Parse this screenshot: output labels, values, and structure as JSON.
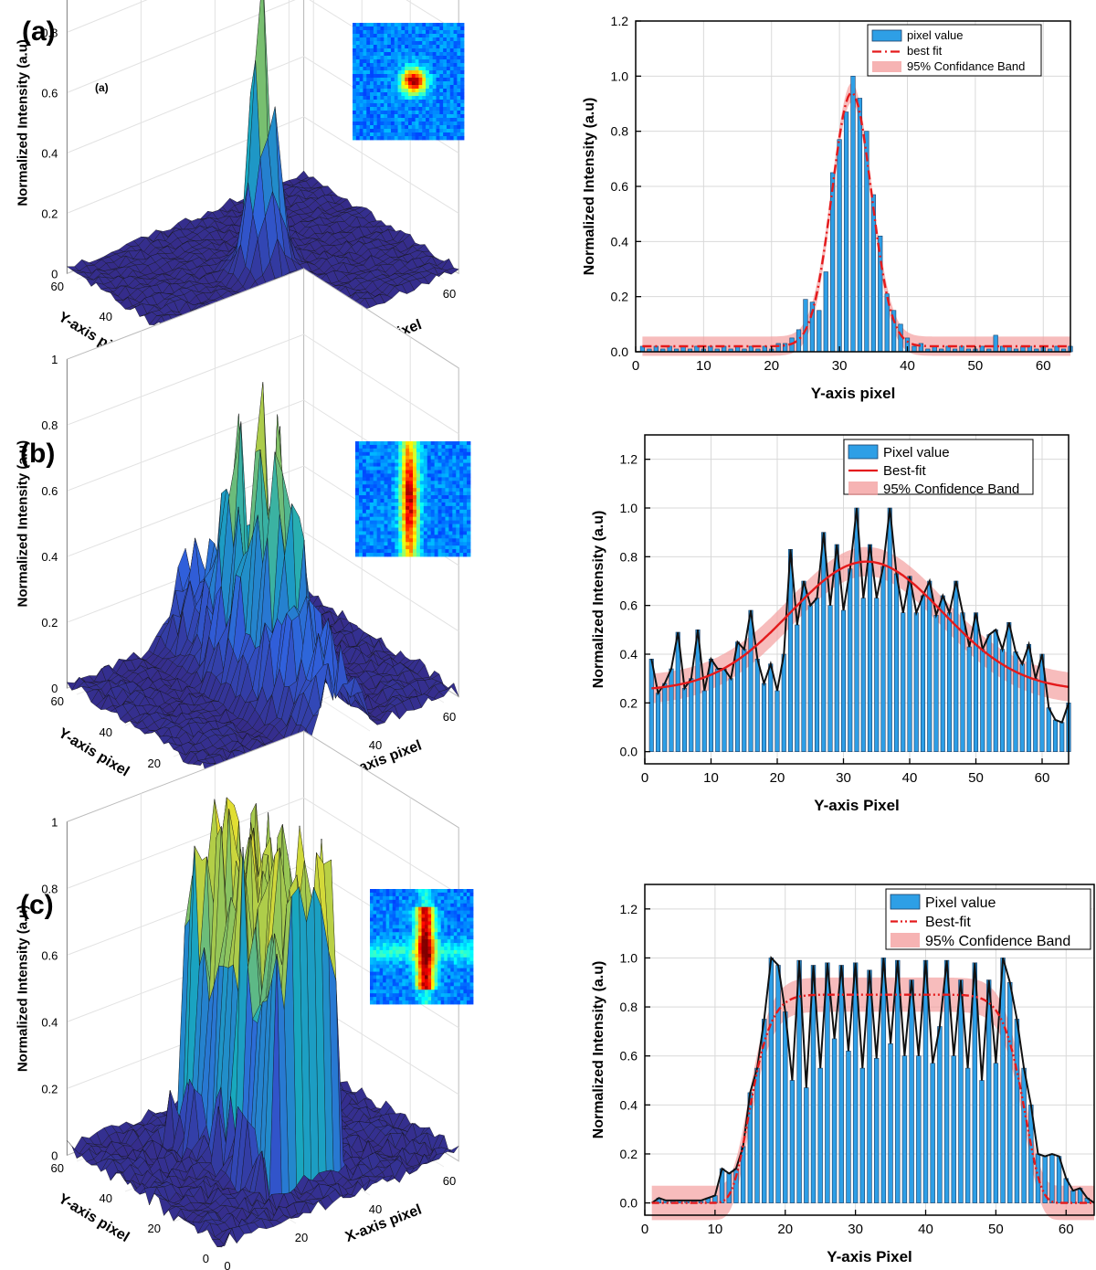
{
  "panel_labels": [
    "(a)",
    "(b)",
    "(c)"
  ],
  "surface_small_label": "(a)",
  "surface_axes": {
    "zlabel": "Normalized Intensity (a.u)",
    "ylabel": "Y-axis pixel",
    "xlabel": "X-axis pixel",
    "z_ticks": [
      "0",
      "0.2",
      "0.4",
      "0.6",
      "0.8",
      "1"
    ],
    "y_ticks": [
      "0",
      "20",
      "40",
      "60"
    ],
    "x_ticks": [
      "0",
      "20",
      "40",
      "60"
    ]
  },
  "colors": {
    "bar_fill": "#2e9fe6",
    "fit_red": "#e41a1c",
    "band": "#f4a0a0",
    "surface_low": "#2b2f9c",
    "surface_high": "#f0e040",
    "beam_bg": "#1034f0"
  },
  "chart_data": [
    {
      "type": "bar",
      "panel": "(a)",
      "title": "",
      "xlabel": "Y-axis pixel",
      "ylabel": "Normalized Intensity (a.u)",
      "xlim": [
        0,
        64
      ],
      "ylim": [
        0,
        1.2
      ],
      "xticks": [
        "0",
        "10",
        "20",
        "30",
        "40",
        "50",
        "60"
      ],
      "yticks": [
        "0.0",
        "0.2",
        "0.4",
        "0.6",
        "0.8",
        "1.0",
        "1.2"
      ],
      "legend": [
        "pixel value",
        "best fit",
        "95% Confidance Band"
      ],
      "fit": {
        "model": "gaussian",
        "amplitude": 0.92,
        "center": 31.8,
        "sigma": 2.9,
        "offset": 0.02,
        "band_halfwidth": 0.035,
        "style": "dash-dot"
      },
      "x": [
        1,
        2,
        3,
        4,
        5,
        6,
        7,
        8,
        9,
        10,
        11,
        12,
        13,
        14,
        15,
        16,
        17,
        18,
        19,
        20,
        21,
        22,
        23,
        24,
        25,
        26,
        27,
        28,
        29,
        30,
        31,
        32,
        33,
        34,
        35,
        36,
        37,
        38,
        39,
        40,
        41,
        42,
        43,
        44,
        45,
        46,
        47,
        48,
        49,
        50,
        51,
        52,
        53,
        54,
        55,
        56,
        57,
        58,
        59,
        60,
        61,
        62,
        63,
        64
      ],
      "values": [
        0.02,
        0.01,
        0.02,
        0.01,
        0.02,
        0.01,
        0.02,
        0.01,
        0.02,
        0.01,
        0.02,
        0.01,
        0.02,
        0.01,
        0.02,
        0.01,
        0.02,
        0.01,
        0.02,
        0.01,
        0.03,
        0.03,
        0.05,
        0.08,
        0.19,
        0.18,
        0.15,
        0.29,
        0.65,
        0.77,
        0.87,
        1.0,
        0.92,
        0.8,
        0.57,
        0.42,
        0.21,
        0.15,
        0.1,
        0.05,
        0.02,
        0.03,
        0.01,
        0.02,
        0.01,
        0.02,
        0.01,
        0.02,
        0.01,
        0.01,
        0.02,
        0.01,
        0.06,
        0.02,
        0.02,
        0.01,
        0.02,
        0.02,
        0.01,
        0.02,
        0.01,
        0.02,
        0.01,
        0.02
      ]
    },
    {
      "type": "bar",
      "panel": "(b)",
      "title": "",
      "xlabel": "Y-axis Pixel",
      "ylabel": "Normalized Intensity (a.u)",
      "xlim": [
        0,
        64
      ],
      "ylim": [
        -0.05,
        1.3
      ],
      "xticks": [
        "0",
        "10",
        "20",
        "30",
        "40",
        "50",
        "60"
      ],
      "yticks": [
        "0.0",
        "0.2",
        "0.4",
        "0.6",
        "0.8",
        "1.0",
        "1.2"
      ],
      "legend": [
        "Pixel value",
        "Best-fit",
        "95% Confidence Band"
      ],
      "fit": {
        "model": "gaussian",
        "amplitude": 0.53,
        "center": 33.5,
        "sigma": 11.5,
        "offset": 0.25,
        "band_halfwidth": 0.06,
        "style": "solid"
      },
      "x": [
        1,
        2,
        3,
        4,
        5,
        6,
        7,
        8,
        9,
        10,
        11,
        12,
        13,
        14,
        15,
        16,
        17,
        18,
        19,
        20,
        21,
        22,
        23,
        24,
        25,
        26,
        27,
        28,
        29,
        30,
        31,
        32,
        33,
        34,
        35,
        36,
        37,
        38,
        39,
        40,
        41,
        42,
        43,
        44,
        45,
        46,
        47,
        48,
        49,
        50,
        51,
        52,
        53,
        54,
        55,
        56,
        57,
        58,
        59,
        60,
        61,
        62,
        63,
        64
      ],
      "values": [
        0.38,
        0.24,
        0.28,
        0.34,
        0.49,
        0.26,
        0.3,
        0.5,
        0.25,
        0.38,
        0.34,
        0.34,
        0.3,
        0.45,
        0.42,
        0.58,
        0.38,
        0.28,
        0.36,
        0.25,
        0.4,
        0.83,
        0.52,
        0.7,
        0.6,
        0.63,
        0.9,
        0.6,
        0.85,
        0.58,
        0.75,
        1.0,
        0.63,
        0.85,
        0.63,
        0.76,
        1.0,
        0.73,
        0.57,
        0.72,
        0.57,
        0.64,
        0.7,
        0.56,
        0.64,
        0.57,
        0.7,
        0.57,
        0.43,
        0.57,
        0.42,
        0.48,
        0.5,
        0.42,
        0.53,
        0.41,
        0.36,
        0.44,
        0.3,
        0.4,
        0.18,
        0.13,
        0.12,
        0.2
      ]
    },
    {
      "type": "bar",
      "panel": "(c)",
      "title": "",
      "xlabel": "Y-axis Pixel",
      "ylabel": "Normalized Intensity (a.u)",
      "xlim": [
        0,
        64
      ],
      "ylim": [
        -0.05,
        1.3
      ],
      "xticks": [
        "0",
        "10",
        "20",
        "30",
        "40",
        "50",
        "60"
      ],
      "yticks": [
        "0.0",
        "0.2",
        "0.4",
        "0.6",
        "0.8",
        "1.0",
        "1.2"
      ],
      "legend": [
        "Pixel value",
        "Best-fit",
        "95% Confidence Band"
      ],
      "fit": {
        "model": "flat-top",
        "level": 0.85,
        "edge_left": 14.5,
        "edge_right": 54.5,
        "power": 10,
        "band_halfwidth": 0.07,
        "style": "dash-dot-dot"
      },
      "x": [
        1,
        2,
        3,
        4,
        5,
        6,
        7,
        8,
        9,
        10,
        11,
        12,
        13,
        14,
        15,
        16,
        17,
        18,
        19,
        20,
        21,
        22,
        23,
        24,
        25,
        26,
        27,
        28,
        29,
        30,
        31,
        32,
        33,
        34,
        35,
        36,
        37,
        38,
        39,
        40,
        41,
        42,
        43,
        44,
        45,
        46,
        47,
        48,
        49,
        50,
        51,
        52,
        53,
        54,
        55,
        56,
        57,
        58,
        59,
        60,
        61,
        62,
        63,
        64
      ],
      "values": [
        0.0,
        0.02,
        0.01,
        0.01,
        0.01,
        0.01,
        0.01,
        0.01,
        0.02,
        0.03,
        0.14,
        0.12,
        0.14,
        0.23,
        0.45,
        0.55,
        0.75,
        1.0,
        0.97,
        0.78,
        0.5,
        0.99,
        0.47,
        0.97,
        0.55,
        0.98,
        0.67,
        0.97,
        0.62,
        0.98,
        0.55,
        0.95,
        0.59,
        1.0,
        0.65,
        0.99,
        0.6,
        0.91,
        0.6,
        0.99,
        0.57,
        0.72,
        0.99,
        0.6,
        0.91,
        0.55,
        0.98,
        0.5,
        0.91,
        0.57,
        1.0,
        0.9,
        0.75,
        0.55,
        0.4,
        0.2,
        0.19,
        0.2,
        0.19,
        0.1,
        0.05,
        0.06,
        0.02,
        0.0
      ]
    }
  ]
}
